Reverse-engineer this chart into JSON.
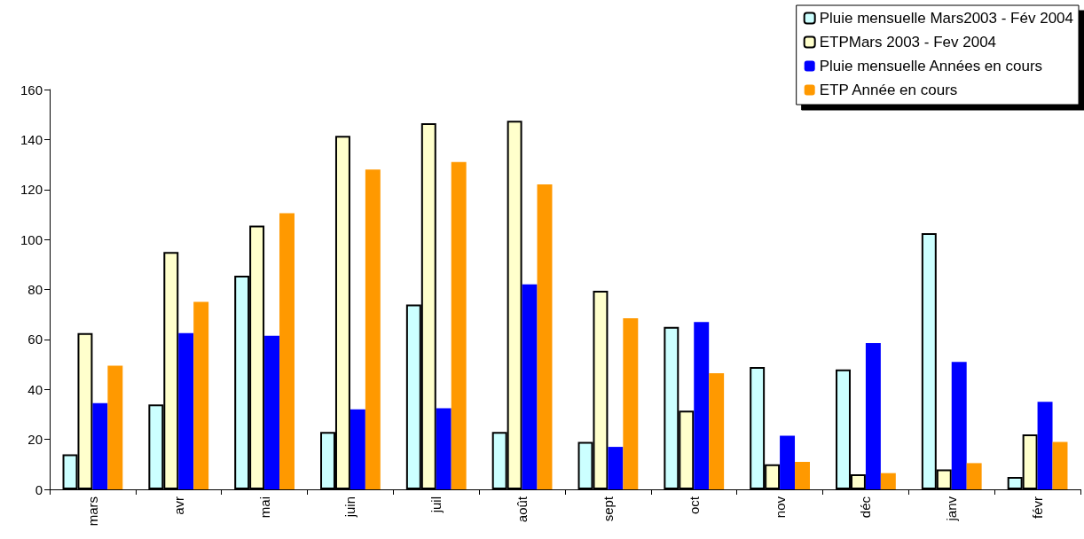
{
  "chart_data": {
    "type": "bar",
    "categories": [
      "mars",
      "avr",
      "mai",
      "juin",
      "juil",
      "août",
      "sept",
      "oct",
      "nov",
      "déc",
      "janv",
      "févr"
    ],
    "series": [
      {
        "name": "Pluie mensuelle Mars2003 - Fév 2004",
        "color": "#ccffff",
        "values": [
          14,
          34,
          85.5,
          23,
          74,
          23,
          19,
          65,
          49,
          48,
          102.5,
          5
        ]
      },
      {
        "name": "ETPMars 2003 - Fev 2004",
        "color": "#ffffcc",
        "values": [
          62.5,
          95,
          105.5,
          141.5,
          146.5,
          147.5,
          79.5,
          31.5,
          10,
          6,
          8,
          22
        ]
      },
      {
        "name": "Pluie mensuelle Années en cours",
        "color": "#0000ff",
        "values": [
          34.5,
          62.5,
          61.5,
          32,
          32.5,
          82,
          17,
          67,
          21.5,
          58.5,
          51,
          35
        ]
      },
      {
        "name": "ETP Année en cours",
        "color": "#ff9900",
        "values": [
          49.5,
          75,
          110.5,
          128,
          131,
          122,
          68.5,
          46.5,
          11,
          6.5,
          10.5,
          19
        ]
      }
    ],
    "ylim": [
      0,
      160
    ],
    "yticks": [
      0,
      20,
      40,
      60,
      80,
      100,
      120,
      140,
      160
    ],
    "grid": false,
    "legend": "top right"
  }
}
